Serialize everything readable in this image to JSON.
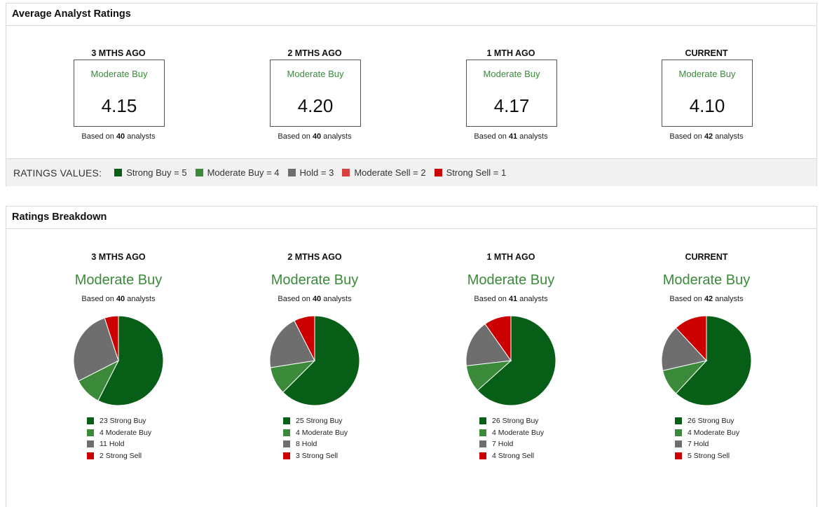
{
  "avg_panel": {
    "title": "Average Analyst Ratings",
    "periods": [
      {
        "label": "3 MTHS AGO",
        "rating": "Moderate Buy",
        "value": "4.15",
        "based_prefix": "Based on",
        "count": "40",
        "based_suffix": "analysts"
      },
      {
        "label": "2 MTHS AGO",
        "rating": "Moderate Buy",
        "value": "4.20",
        "based_prefix": "Based on",
        "count": "40",
        "based_suffix": "analysts"
      },
      {
        "label": "1 MTH AGO",
        "rating": "Moderate Buy",
        "value": "4.17",
        "based_prefix": "Based on",
        "count": "41",
        "based_suffix": "analysts"
      },
      {
        "label": "CURRENT",
        "rating": "Moderate Buy",
        "value": "4.10",
        "based_prefix": "Based on",
        "count": "42",
        "based_suffix": "analysts"
      }
    ],
    "ratings_values": {
      "title": "RATINGS VALUES:",
      "items": [
        {
          "label": "Strong Buy = 5",
          "color": "#065e17"
        },
        {
          "label": "Moderate Buy = 4",
          "color": "#3a8a3a"
        },
        {
          "label": "Hold = 3",
          "color": "#6e6e6e"
        },
        {
          "label": "Moderate Sell = 2",
          "color": "#d94040"
        },
        {
          "label": "Strong Sell = 1",
          "color": "#cc0000"
        }
      ]
    }
  },
  "breakdown_panel": {
    "title": "Ratings Breakdown",
    "periods": [
      {
        "label": "3 MTHS AGO",
        "rating": "Moderate Buy",
        "based_prefix": "Based on",
        "count": "40",
        "based_suffix": "analysts",
        "legend": [
          "23 Strong Buy",
          "4 Moderate Buy",
          "11 Hold",
          "2 Strong Sell"
        ]
      },
      {
        "label": "2 MTHS AGO",
        "rating": "Moderate Buy",
        "based_prefix": "Based on",
        "count": "40",
        "based_suffix": "analysts",
        "legend": [
          "25 Strong Buy",
          "4 Moderate Buy",
          "8 Hold",
          "3 Strong Sell"
        ]
      },
      {
        "label": "1 MTH AGO",
        "rating": "Moderate Buy",
        "based_prefix": "Based on",
        "count": "41",
        "based_suffix": "analysts",
        "legend": [
          "26 Strong Buy",
          "4 Moderate Buy",
          "7 Hold",
          "4 Strong Sell"
        ]
      },
      {
        "label": "CURRENT",
        "rating": "Moderate Buy",
        "based_prefix": "Based on",
        "count": "42",
        "based_suffix": "analysts",
        "legend": [
          "26 Strong Buy",
          "4 Moderate Buy",
          "7 Hold",
          "5 Strong Sell"
        ]
      }
    ]
  },
  "chart_data": [
    {
      "type": "pie",
      "title": "3 MTHS AGO",
      "categories": [
        "Strong Buy",
        "Moderate Buy",
        "Hold",
        "Strong Sell"
      ],
      "values": [
        23,
        4,
        11,
        2
      ],
      "colors": [
        "#065e17",
        "#3a8a3a",
        "#6e6e6e",
        "#cc0000"
      ]
    },
    {
      "type": "pie",
      "title": "2 MTHS AGO",
      "categories": [
        "Strong Buy",
        "Moderate Buy",
        "Hold",
        "Strong Sell"
      ],
      "values": [
        25,
        4,
        8,
        3
      ],
      "colors": [
        "#065e17",
        "#3a8a3a",
        "#6e6e6e",
        "#cc0000"
      ]
    },
    {
      "type": "pie",
      "title": "1 MTH AGO",
      "categories": [
        "Strong Buy",
        "Moderate Buy",
        "Hold",
        "Strong Sell"
      ],
      "values": [
        26,
        4,
        7,
        4
      ],
      "colors": [
        "#065e17",
        "#3a8a3a",
        "#6e6e6e",
        "#cc0000"
      ]
    },
    {
      "type": "pie",
      "title": "CURRENT",
      "categories": [
        "Strong Buy",
        "Moderate Buy",
        "Hold",
        "Strong Sell"
      ],
      "values": [
        26,
        4,
        7,
        5
      ],
      "colors": [
        "#065e17",
        "#3a8a3a",
        "#6e6e6e",
        "#cc0000"
      ]
    }
  ]
}
